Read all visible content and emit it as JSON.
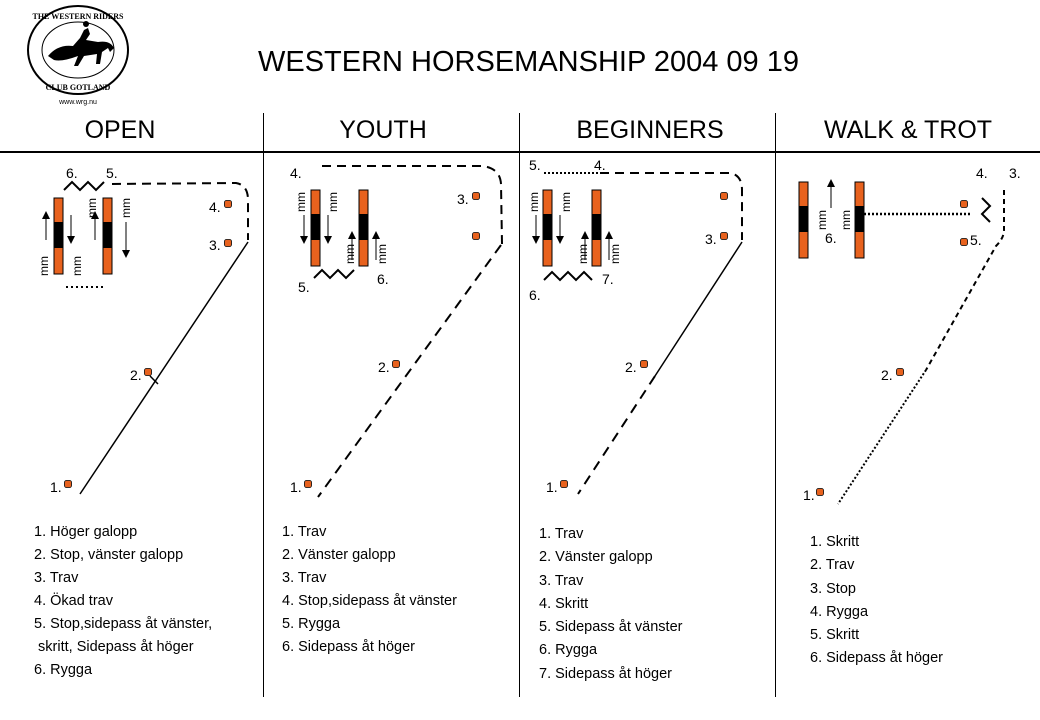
{
  "title": "WESTERN HORSEMANSHIP 2004 09 19",
  "logo": {
    "top_text": "THE WESTERN RIDERS",
    "bottom_text": "CLUB GOTLAND",
    "url": "www.wrg.nu"
  },
  "columns": [
    {
      "header": "OPEN"
    },
    {
      "header": "YOUTH"
    },
    {
      "header": "BEGINNERS"
    },
    {
      "header": "WALK & TROT"
    }
  ],
  "mm": "mm",
  "accent_color": "#e8621e",
  "cone_labels": {
    "open": [
      "1.",
      "2.",
      "3.",
      "4.",
      "5.",
      "6."
    ],
    "youth": [
      "1.",
      "2.",
      "3.",
      "4.",
      "5.",
      "6."
    ],
    "beginners": [
      "1.",
      "2.",
      "3.",
      "5.",
      "4.",
      "6.",
      "7."
    ],
    "walktrot": [
      "1.",
      "2.",
      "3.",
      "4.",
      "5.",
      "6."
    ]
  },
  "lists": {
    "open": [
      "1. Höger galopp",
      "2. Stop, vänster galopp",
      "3. Trav",
      "4. Ökad trav",
      "5. Stop,sidepass åt vänster,",
      " skritt, Sidepass åt höger",
      "6. Rygga"
    ],
    "youth": [
      "1. Trav",
      "2. Vänster galopp",
      "3. Trav",
      "4. Stop,sidepass åt vänster",
      "5. Rygga",
      "6. Sidepass åt höger"
    ],
    "beginners": [
      "1. Trav",
      "2. Vänster galopp",
      "3. Trav",
      "4. Skritt",
      "5. Sidepass åt vänster",
      "6. Rygga",
      "7. Sidepass åt höger"
    ],
    "walktrot": [
      "1. Skritt",
      "2. Trav",
      "3. Stop",
      "4. Rygga",
      "5. Skritt",
      "6. Sidepass åt höger"
    ]
  }
}
